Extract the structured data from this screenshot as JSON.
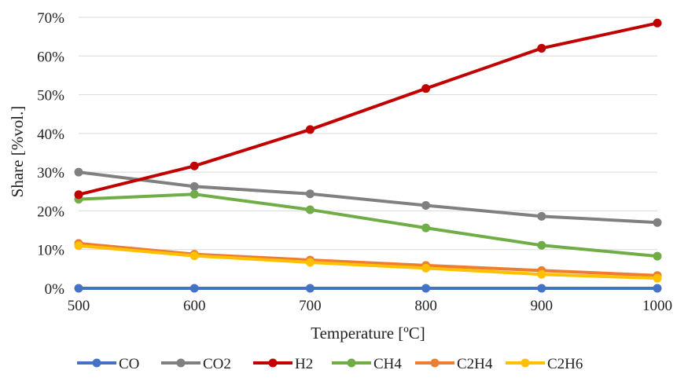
{
  "chart_data": {
    "type": "line",
    "xlabel": "Temperature [ºC]",
    "ylabel": "Share [%vol.]",
    "x": [
      500,
      600,
      700,
      800,
      900,
      1000
    ],
    "xlim": [
      500,
      1000
    ],
    "ylim": [
      0,
      70
    ],
    "y_ticks": [
      "0%",
      "10%",
      "20%",
      "30%",
      "40%",
      "50%",
      "60%",
      "70%"
    ],
    "x_ticks": [
      "500",
      "600",
      "700",
      "800",
      "900",
      "1000"
    ],
    "grid": "horizontal",
    "legend_position": "bottom",
    "series": [
      {
        "name": "CO",
        "color": "#4472C4",
        "values": [
          0,
          0,
          0,
          0,
          0,
          0
        ]
      },
      {
        "name": "CO2",
        "color": "#808080",
        "values": [
          30.0,
          26.3,
          24.4,
          21.4,
          18.6,
          17.0
        ]
      },
      {
        "name": "H2",
        "color": "#C00000",
        "values": [
          24.2,
          31.6,
          41.0,
          51.6,
          62.0,
          68.5
        ]
      },
      {
        "name": "CH4",
        "color": "#70AD47",
        "values": [
          23.0,
          24.3,
          20.3,
          15.6,
          11.1,
          8.3
        ]
      },
      {
        "name": "C2H4",
        "color": "#ED7D31",
        "values": [
          11.6,
          8.8,
          7.3,
          5.9,
          4.6,
          3.3
        ]
      },
      {
        "name": "C2H6",
        "color": "#FFC000",
        "values": [
          11.0,
          8.4,
          6.7,
          5.2,
          3.6,
          2.6
        ]
      }
    ]
  }
}
